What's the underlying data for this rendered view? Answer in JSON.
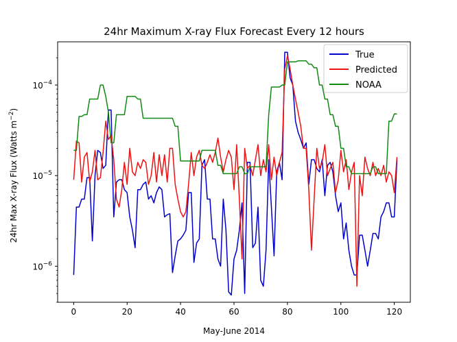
{
  "chart_data": {
    "type": "line",
    "title": "24hr Maximum X-ray Flux Forecast Every 12 hours",
    "xlabel": "May-June 2014",
    "ylabel": "24hr Max X-ray Flux (Watts m",
    "ylabel_sup": "−2",
    "ylabel_close": ")",
    "xlim": [
      -6,
      126
    ],
    "ylim": [
      4e-07,
      0.0003
    ],
    "yscale": "log",
    "xticks": [
      0,
      20,
      40,
      60,
      80,
      100,
      120
    ],
    "yticks": [
      {
        "value": 1e-06,
        "base": "10",
        "exp": "−6"
      },
      {
        "value": 1e-05,
        "base": "10",
        "exp": "−5"
      },
      {
        "value": 0.0001,
        "base": "10",
        "exp": "−4"
      }
    ],
    "grid": false,
    "legend_position": "top-right",
    "series": [
      {
        "name": "True",
        "color": "#0000cc",
        "x": [
          0,
          1,
          2,
          3,
          4,
          5,
          6,
          7,
          8,
          9,
          10,
          11,
          12,
          13,
          14,
          15,
          16,
          17,
          18,
          19,
          20,
          21,
          22,
          23,
          24,
          25,
          26,
          27,
          28,
          29,
          30,
          31,
          32,
          33,
          34,
          35,
          36,
          37,
          38,
          39,
          40,
          41,
          42,
          43,
          44,
          45,
          46,
          47,
          48,
          49,
          50,
          51,
          52,
          53,
          54,
          55,
          56,
          57,
          58,
          59,
          60,
          61,
          62,
          63,
          64,
          65,
          66,
          67,
          68,
          69,
          70,
          71,
          72,
          73,
          74,
          75,
          76,
          77,
          78,
          79,
          80,
          81,
          82,
          83,
          84,
          85,
          86,
          87,
          88,
          89,
          90,
          91,
          92,
          93,
          94,
          95,
          96,
          97,
          98,
          99,
          100,
          101,
          102,
          103,
          104,
          105,
          106,
          107,
          108,
          109,
          110,
          111,
          112,
          113,
          114,
          115,
          116,
          117,
          118,
          119,
          120,
          121
        ],
        "values": [
          8e-07,
          4.5e-06,
          4.5e-06,
          5.5e-06,
          5.5e-06,
          9.5e-06,
          9.5e-06,
          1.9e-06,
          1e-05,
          1.9e-05,
          1.8e-05,
          1.2e-05,
          1.3e-05,
          5.3e-05,
          5.3e-05,
          3.5e-06,
          8.5e-06,
          9e-06,
          9e-06,
          7e-06,
          6.5e-06,
          3.5e-06,
          2.5e-06,
          1.6e-06,
          7e-06,
          7e-06,
          8e-06,
          8.5e-06,
          5.5e-06,
          6e-06,
          5e-06,
          6.5e-06,
          7.5e-06,
          7e-06,
          3.5e-06,
          3.7e-06,
          3.8e-06,
          8.5e-07,
          1.3e-06,
          1.9e-06,
          2e-06,
          2.2e-06,
          2.5e-06,
          6.5e-06,
          6.5e-06,
          1.1e-06,
          1.8e-06,
          2e-06,
          1.3e-05,
          1.5e-05,
          5.5e-06,
          5.5e-06,
          2e-06,
          2e-06,
          1.2e-06,
          1e-06,
          5.5e-06,
          2.5e-06,
          5.2e-07,
          4.8e-07,
          1.2e-06,
          1.5e-06,
          2.5e-06,
          5e-06,
          5e-07,
          1.4e-05,
          1.4e-05,
          1.6e-06,
          1.8e-06,
          4.5e-06,
          7e-07,
          6e-07,
          1.5e-06,
          1.5e-05,
          4.5e-06,
          1.3e-06,
          1.1e-05,
          1.4e-05,
          9e-06,
          0.00023,
          0.00023,
          0.00012,
          0.0001,
          4e-05,
          3e-05,
          2.5e-05,
          2e-05,
          2.3e-05,
          8e-06,
          1.5e-05,
          1.5e-05,
          1.2e-05,
          1.1e-05,
          1.5e-05,
          6e-06,
          1.3e-05,
          1.4e-05,
          1.1e-05,
          6e-06,
          4e-06,
          5e-06,
          2e-06,
          3e-06,
          1.5e-06,
          1e-06,
          8e-07,
          8e-07,
          2.2e-06,
          2.2e-06,
          1.5e-06,
          1e-06,
          1.5e-06,
          2.3e-06,
          2.3e-06,
          2e-06,
          3.5e-06,
          4e-06,
          5e-06,
          5e-06,
          3.5e-06,
          3.5e-06,
          1.5e-05
        ]
      },
      {
        "name": "Predicted",
        "color": "#ee1111",
        "x": [
          0,
          1,
          2,
          3,
          4,
          5,
          6,
          7,
          8,
          9,
          10,
          11,
          12,
          13,
          14,
          15,
          16,
          17,
          18,
          19,
          20,
          21,
          22,
          23,
          24,
          25,
          26,
          27,
          28,
          29,
          30,
          31,
          32,
          33,
          34,
          35,
          36,
          37,
          38,
          39,
          40,
          41,
          42,
          43,
          44,
          45,
          46,
          47,
          48,
          49,
          50,
          51,
          52,
          53,
          54,
          55,
          56,
          57,
          58,
          59,
          60,
          61,
          62,
          63,
          64,
          65,
          66,
          67,
          68,
          69,
          70,
          71,
          72,
          73,
          74,
          75,
          76,
          77,
          78,
          79,
          80,
          81,
          82,
          83,
          84,
          85,
          86,
          87,
          88,
          89,
          90,
          91,
          92,
          93,
          94,
          95,
          96,
          97,
          98,
          99,
          100,
          101,
          102,
          103,
          104,
          105,
          106,
          107,
          108,
          109,
          110,
          111,
          112,
          113,
          114,
          115,
          116,
          117,
          118,
          119,
          120,
          121
        ],
        "values": [
          9e-06,
          2.4e-05,
          2.3e-05,
          8.5e-06,
          1.6e-05,
          1.8e-05,
          8.5e-06,
          1.1e-05,
          1.9e-05,
          9e-06,
          9.5e-06,
          1.8e-05,
          4e-05,
          2.5e-05,
          2.8e-05,
          1.5e-05,
          5.5e-06,
          4.5e-06,
          7e-06,
          1.4e-05,
          8e-06,
          2e-05,
          1.1e-05,
          1e-05,
          1.4e-05,
          1.2e-05,
          1.5e-05,
          1.4e-05,
          8e-06,
          1e-05,
          1.8e-05,
          8.5e-06,
          1.7e-05,
          1e-05,
          1.7e-05,
          8.5e-06,
          2e-05,
          2e-05,
          8e-06,
          5.5e-06,
          4e-06,
          3.5e-06,
          4e-06,
          8e-06,
          1.8e-05,
          1e-05,
          1.6e-05,
          1.9e-05,
          1.3e-05,
          1.2e-05,
          1.4e-05,
          1.7e-05,
          1.4e-05,
          1.8e-05,
          2.6e-05,
          1.6e-05,
          1.1e-05,
          1.5e-05,
          1.9e-05,
          1.6e-05,
          7e-06,
          2.2e-05,
          5.5e-06,
          1.2e-06,
          2e-05,
          1.2e-05,
          1.3e-05,
          1e-05,
          1.5e-05,
          2.2e-05,
          1e-05,
          1.5e-05,
          1.1e-05,
          2.2e-05,
          9e-06,
          1.6e-05,
          1e-05,
          1.4e-05,
          1.8e-05,
          0.00015,
          0.00021,
          0.00015,
          0.0001,
          7e-05,
          5e-05,
          3.5e-05,
          2e-05,
          2e-05,
          7e-06,
          1.5e-06,
          5.5e-06,
          2e-05,
          1.2e-05,
          1.4e-05,
          2.2e-05,
          1e-05,
          1.2e-05,
          1.4e-05,
          6.5e-06,
          9e-06,
          1.9e-05,
          1.1e-05,
          1.5e-05,
          7e-06,
          1.1e-05,
          1.4e-05,
          6e-07,
          1e-05,
          6e-06,
          1.6e-05,
          1.2e-05,
          1e-05,
          1.4e-05,
          1e-05,
          1.2e-05,
          1e-05,
          1.3e-05,
          8.5e-06,
          1.1e-05,
          1e-05,
          6.5e-06,
          1.6e-05
        ]
      },
      {
        "name": "NOAA",
        "color": "#118811",
        "x": [
          0,
          1,
          2,
          3,
          4,
          5,
          6,
          7,
          8,
          9,
          10,
          11,
          12,
          13,
          14,
          15,
          16,
          17,
          18,
          19,
          20,
          21,
          22,
          23,
          24,
          25,
          26,
          27,
          28,
          29,
          30,
          31,
          32,
          33,
          34,
          35,
          36,
          37,
          38,
          39,
          40,
          41,
          42,
          43,
          44,
          45,
          46,
          47,
          48,
          49,
          50,
          51,
          52,
          53,
          54,
          55,
          56,
          57,
          58,
          59,
          60,
          61,
          62,
          63,
          64,
          65,
          66,
          67,
          68,
          69,
          70,
          71,
          72,
          73,
          74,
          75,
          76,
          77,
          78,
          79,
          80,
          81,
          82,
          83,
          84,
          85,
          86,
          87,
          88,
          89,
          90,
          91,
          92,
          93,
          94,
          95,
          96,
          97,
          98,
          99,
          100,
          101,
          102,
          103,
          104,
          105,
          106,
          107,
          108,
          109,
          110,
          111,
          112,
          113,
          114,
          115,
          116,
          117,
          118,
          119,
          120,
          121
        ],
        "values": [
          1.9e-05,
          1.9e-05,
          4.5e-05,
          4.5e-05,
          4.7e-05,
          4.7e-05,
          7e-05,
          7e-05,
          7e-05,
          7e-05,
          0.0001,
          0.0001,
          7.5e-05,
          5e-05,
          2.3e-05,
          2.3e-05,
          4.7e-05,
          4.7e-05,
          4.7e-05,
          4.7e-05,
          7.5e-05,
          7.5e-05,
          7.5e-05,
          7.5e-05,
          7e-05,
          7e-05,
          4.3e-05,
          4.3e-05,
          4.3e-05,
          4.3e-05,
          4.3e-05,
          4.3e-05,
          4.3e-05,
          4.3e-05,
          4.3e-05,
          4.3e-05,
          4.3e-05,
          4.3e-05,
          3.5e-05,
          3.5e-05,
          1.45e-05,
          1.45e-05,
          1.45e-05,
          1.45e-05,
          1.45e-05,
          1.45e-05,
          1.45e-05,
          1.45e-05,
          1.9e-05,
          1.9e-05,
          1.9e-05,
          1.9e-05,
          1.9e-05,
          1.9e-05,
          1.3e-05,
          1.3e-05,
          1.05e-05,
          1.05e-05,
          1.05e-05,
          1.05e-05,
          1.05e-05,
          1.05e-05,
          1.25e-05,
          1.25e-05,
          1.05e-05,
          1.05e-05,
          1.25e-05,
          1.25e-05,
          1.25e-05,
          1.25e-05,
          1.25e-05,
          1.25e-05,
          1.25e-05,
          4.7e-05,
          9.5e-05,
          9.5e-05,
          9.5e-05,
          9.5e-05,
          0.0001,
          0.0001,
          0.00018,
          0.00018,
          0.00018,
          0.00018,
          0.000185,
          0.000185,
          0.000185,
          0.000185,
          0.00017,
          0.00017,
          0.000155,
          0.000155,
          0.0001,
          0.0001,
          7e-05,
          7e-05,
          4.7e-05,
          4.7e-05,
          3.5e-05,
          3.5e-05,
          2e-05,
          2e-05,
          1.25e-05,
          1.25e-05,
          1.05e-05,
          1.05e-05,
          1.05e-05,
          1.05e-05,
          1.05e-05,
          1.05e-05,
          1.05e-05,
          1.05e-05,
          1.25e-05,
          1.25e-05,
          1.05e-05,
          1.05e-05,
          1.05e-05,
          1.05e-05,
          4e-05,
          4e-05,
          4.8e-05,
          4.8e-05
        ]
      }
    ]
  }
}
